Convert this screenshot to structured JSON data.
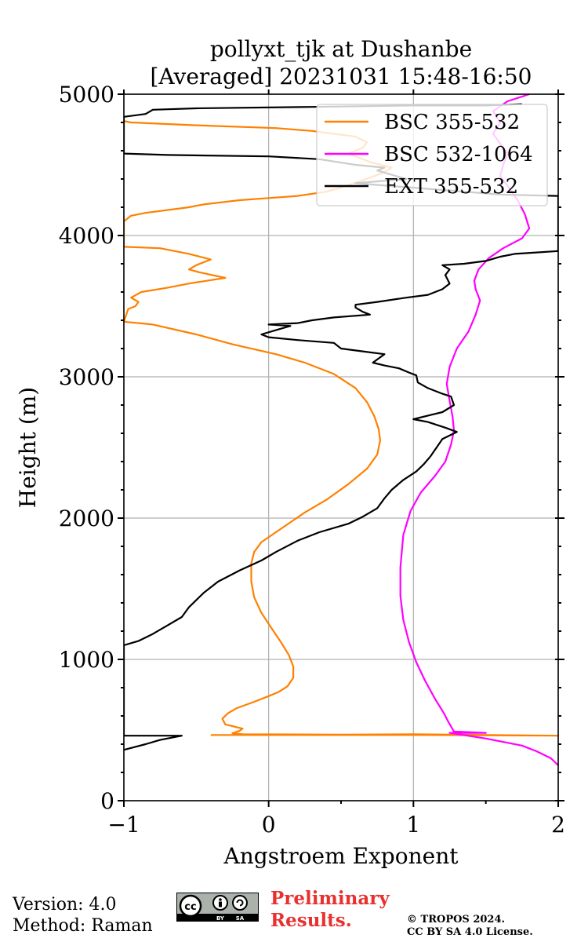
{
  "chart_data": {
    "type": "line",
    "title": "pollyxt_tjk at Dushanbe",
    "subtitle": "[Averaged] 20231031 15:48-16:50",
    "xlabel": "Angstroem Exponent",
    "ylabel": "Height (m)",
    "xlim": [
      -1,
      2
    ],
    "ylim": [
      0,
      5000
    ],
    "xticks": [
      -1,
      0,
      1,
      2
    ],
    "xtick_labels": [
      "−1",
      "0",
      "1",
      "2"
    ],
    "yticks": [
      0,
      1000,
      2000,
      3000,
      4000,
      5000
    ],
    "ytick_labels": [
      "0",
      "1000",
      "2000",
      "3000",
      "4000",
      "5000"
    ],
    "grid": true,
    "legend_position": "top-right",
    "series": [
      {
        "name": "BSC 355-532",
        "color": "#ff8000",
        "points": [
          [
            -0.4,
            465
          ],
          [
            1.1,
            465
          ],
          [
            2.0,
            460
          ],
          [
            1.0,
            470
          ],
          [
            0.5,
            468
          ],
          [
            -0.18,
            470
          ],
          [
            -0.25,
            478
          ],
          [
            -0.2,
            495
          ],
          [
            -0.18,
            510
          ],
          [
            -0.3,
            540
          ],
          [
            -0.32,
            580
          ],
          [
            -0.28,
            620
          ],
          [
            -0.22,
            655
          ],
          [
            -0.1,
            700
          ],
          [
            0.0,
            740
          ],
          [
            0.07,
            770
          ],
          [
            0.13,
            810
          ],
          [
            0.17,
            870
          ],
          [
            0.17,
            950
          ],
          [
            0.14,
            1030
          ],
          [
            0.08,
            1130
          ],
          [
            0.02,
            1220
          ],
          [
            -0.05,
            1330
          ],
          [
            -0.1,
            1440
          ],
          [
            -0.12,
            1550
          ],
          [
            -0.12,
            1680
          ],
          [
            -0.1,
            1760
          ],
          [
            -0.05,
            1830
          ],
          [
            0.05,
            1900
          ],
          [
            0.15,
            1970
          ],
          [
            0.25,
            2040
          ],
          [
            0.4,
            2130
          ],
          [
            0.55,
            2240
          ],
          [
            0.68,
            2350
          ],
          [
            0.75,
            2450
          ],
          [
            0.77,
            2550
          ],
          [
            0.76,
            2630
          ],
          [
            0.73,
            2720
          ],
          [
            0.68,
            2820
          ],
          [
            0.6,
            2920
          ],
          [
            0.45,
            3020
          ],
          [
            0.25,
            3100
          ],
          [
            0.05,
            3160
          ],
          [
            -0.25,
            3230
          ],
          [
            -0.5,
            3300
          ],
          [
            -0.8,
            3370
          ],
          [
            -1.0,
            3390
          ],
          [
            -0.97,
            3480
          ],
          [
            -0.92,
            3500
          ],
          [
            -0.9,
            3530
          ],
          [
            -0.95,
            3560
          ],
          [
            -0.88,
            3600
          ],
          [
            -0.7,
            3630
          ],
          [
            -0.55,
            3660
          ],
          [
            -0.3,
            3700
          ],
          [
            -0.48,
            3740
          ],
          [
            -0.55,
            3760
          ],
          [
            -0.5,
            3790
          ],
          [
            -0.4,
            3830
          ],
          [
            -0.55,
            3870
          ],
          [
            -0.75,
            3910
          ],
          [
            -1.0,
            3920
          ],
          [
            -1.0,
            4100
          ],
          [
            -0.95,
            4140
          ],
          [
            -0.85,
            4160
          ],
          [
            -0.55,
            4200
          ],
          [
            -0.45,
            4220
          ],
          [
            -0.2,
            4250
          ],
          [
            0.0,
            4265
          ],
          [
            0.2,
            4280
          ],
          [
            0.4,
            4310
          ],
          [
            0.5,
            4340
          ],
          [
            0.62,
            4380
          ],
          [
            0.78,
            4440
          ],
          [
            0.85,
            4480
          ],
          [
            0.7,
            4520
          ],
          [
            0.55,
            4580
          ],
          [
            0.65,
            4620
          ],
          [
            0.68,
            4660
          ],
          [
            0.6,
            4700
          ],
          [
            0.3,
            4740
          ],
          [
            0.05,
            4760
          ],
          [
            -0.5,
            4780
          ],
          [
            -0.95,
            4800
          ],
          [
            -1.0,
            4810
          ]
        ]
      },
      {
        "name": "BSC 532-1064",
        "color": "#ff00ff",
        "points": [
          [
            2.0,
            250
          ],
          [
            1.95,
            300
          ],
          [
            1.85,
            350
          ],
          [
            1.75,
            390
          ],
          [
            1.65,
            410
          ],
          [
            1.5,
            440
          ],
          [
            1.25,
            480
          ],
          [
            1.5,
            480
          ],
          [
            1.28,
            490
          ],
          [
            1.24,
            560
          ],
          [
            1.21,
            620
          ],
          [
            1.15,
            720
          ],
          [
            1.08,
            850
          ],
          [
            1.02,
            980
          ],
          [
            0.97,
            1120
          ],
          [
            0.93,
            1280
          ],
          [
            0.91,
            1450
          ],
          [
            0.91,
            1650
          ],
          [
            0.93,
            1880
          ],
          [
            0.98,
            2050
          ],
          [
            1.05,
            2180
          ],
          [
            1.15,
            2300
          ],
          [
            1.22,
            2400
          ],
          [
            1.26,
            2520
          ],
          [
            1.28,
            2620
          ],
          [
            1.27,
            2720
          ],
          [
            1.25,
            2830
          ],
          [
            1.23,
            2950
          ],
          [
            1.25,
            3070
          ],
          [
            1.3,
            3200
          ],
          [
            1.38,
            3320
          ],
          [
            1.43,
            3440
          ],
          [
            1.46,
            3540
          ],
          [
            1.43,
            3620
          ],
          [
            1.42,
            3680
          ],
          [
            1.45,
            3760
          ],
          [
            1.52,
            3840
          ],
          [
            1.62,
            3910
          ],
          [
            1.75,
            3980
          ],
          [
            1.8,
            4050
          ],
          [
            1.77,
            4150
          ],
          [
            1.72,
            4250
          ],
          [
            1.65,
            4350
          ],
          [
            1.6,
            4420
          ],
          [
            1.62,
            4500
          ],
          [
            1.65,
            4580
          ],
          [
            1.6,
            4650
          ],
          [
            1.55,
            4720
          ],
          [
            1.6,
            4800
          ],
          [
            1.55,
            4880
          ],
          [
            1.65,
            4950
          ],
          [
            1.8,
            5000
          ]
        ]
      },
      {
        "name": "EXT 355-532",
        "color": "#000000",
        "points": [
          [
            -1.0,
            360
          ],
          [
            -0.85,
            400
          ],
          [
            -0.75,
            430
          ],
          [
            -0.6,
            460
          ],
          [
            -1.0,
            460
          ],
          [
            -1.0,
            1100
          ],
          [
            -0.9,
            1130
          ],
          [
            -0.8,
            1180
          ],
          [
            -0.7,
            1240
          ],
          [
            -0.6,
            1300
          ],
          [
            -0.55,
            1370
          ],
          [
            -0.45,
            1470
          ],
          [
            -0.35,
            1550
          ],
          [
            -0.2,
            1630
          ],
          [
            -0.05,
            1700
          ],
          [
            0.05,
            1760
          ],
          [
            0.2,
            1840
          ],
          [
            0.35,
            1900
          ],
          [
            0.55,
            1960
          ],
          [
            0.65,
            2010
          ],
          [
            0.75,
            2070
          ],
          [
            0.8,
            2140
          ],
          [
            0.85,
            2200
          ],
          [
            0.93,
            2270
          ],
          [
            1.02,
            2330
          ],
          [
            1.07,
            2380
          ],
          [
            1.12,
            2440
          ],
          [
            1.16,
            2500
          ],
          [
            1.2,
            2560
          ],
          [
            1.3,
            2610
          ],
          [
            1.22,
            2640
          ],
          [
            1.1,
            2680
          ],
          [
            1.0,
            2700
          ],
          [
            1.12,
            2730
          ],
          [
            1.2,
            2750
          ],
          [
            1.28,
            2800
          ],
          [
            1.26,
            2860
          ],
          [
            1.2,
            2880
          ],
          [
            1.1,
            2920
          ],
          [
            1.03,
            2960
          ],
          [
            1.02,
            3010
          ],
          [
            0.97,
            3030
          ],
          [
            0.9,
            3060
          ],
          [
            0.8,
            3080
          ],
          [
            0.72,
            3100
          ],
          [
            0.8,
            3160
          ],
          [
            0.65,
            3180
          ],
          [
            0.5,
            3200
          ],
          [
            0.45,
            3240
          ],
          [
            0.2,
            3260
          ],
          [
            0.0,
            3280
          ],
          [
            -0.05,
            3300
          ],
          [
            0.05,
            3330
          ],
          [
            0.15,
            3360
          ],
          [
            0.0,
            3370
          ],
          [
            0.2,
            3380
          ],
          [
            0.3,
            3400
          ],
          [
            0.45,
            3420
          ],
          [
            0.7,
            3440
          ],
          [
            0.65,
            3460
          ],
          [
            0.6,
            3490
          ],
          [
            0.6,
            3510
          ],
          [
            0.75,
            3530
          ],
          [
            0.95,
            3560
          ],
          [
            1.1,
            3580
          ],
          [
            1.2,
            3620
          ],
          [
            1.25,
            3660
          ],
          [
            1.22,
            3720
          ],
          [
            1.25,
            3760
          ],
          [
            1.2,
            3790
          ],
          [
            1.35,
            3800
          ],
          [
            1.5,
            3820
          ],
          [
            1.6,
            3850
          ],
          [
            1.7,
            3870
          ],
          [
            1.85,
            3880
          ],
          [
            2.0,
            3890
          ],
          [
            2.0,
            4280
          ],
          [
            1.6,
            4290
          ],
          [
            0.6,
            4370
          ],
          [
            0.95,
            4400
          ],
          [
            0.75,
            4460
          ],
          [
            0.8,
            4480
          ],
          [
            0.6,
            4500
          ],
          [
            0.35,
            4540
          ],
          [
            0.0,
            4560
          ],
          [
            -0.7,
            4570
          ],
          [
            -1.0,
            4580
          ],
          [
            -1.0,
            4840
          ],
          [
            -0.85,
            4860
          ],
          [
            -0.8,
            4890
          ],
          [
            -0.5,
            4900
          ],
          [
            0.3,
            4910
          ],
          [
            1.0,
            4920
          ],
          [
            1.5,
            4920
          ],
          [
            1.75,
            4930
          ]
        ]
      }
    ]
  },
  "footer": {
    "version": "Version: 4.0",
    "method": "Method: Raman",
    "preliminary_line1": "Preliminary",
    "preliminary_line2": "Results.",
    "copyright_line1": "© TROPOS 2024.",
    "copyright_line2": "CC BY SA 4.0 License.",
    "cc_badge": "cc-by-sa-badge",
    "cc_by": "BY",
    "cc_sa": "SA"
  }
}
